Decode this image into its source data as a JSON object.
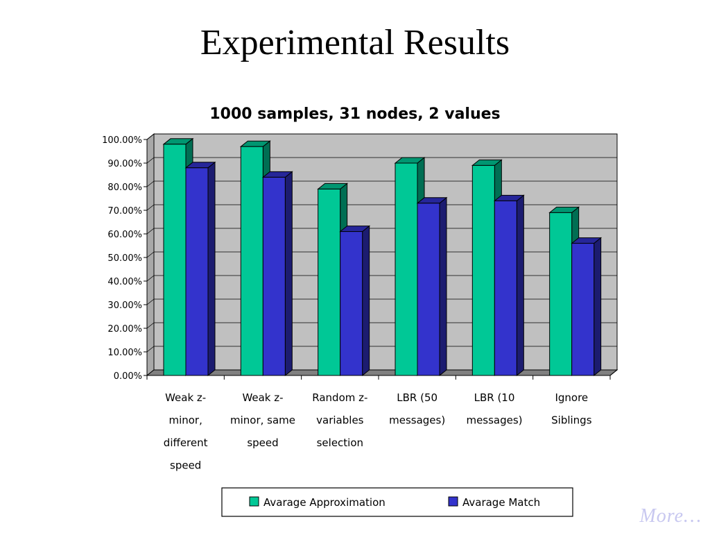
{
  "slide": {
    "title": "Experimental Results",
    "more_link": "More…"
  },
  "chart_data": {
    "type": "bar",
    "title": "1000 samples, 31 nodes, 2 values",
    "xlabel": "",
    "ylabel": "",
    "ylim": [
      0,
      100
    ],
    "yticks": [
      "0.00%",
      "10.00%",
      "20.00%",
      "30.00%",
      "40.00%",
      "50.00%",
      "60.00%",
      "70.00%",
      "80.00%",
      "90.00%",
      "100.00%"
    ],
    "grid": true,
    "legend_position": "bottom",
    "categories": [
      [
        "Weak z-",
        "minor,",
        "different",
        "speed"
      ],
      [
        "Weak z-",
        "minor, same",
        "speed"
      ],
      [
        "Random z-",
        "variables",
        "selection"
      ],
      [
        "LBR (50",
        "messages)"
      ],
      [
        "LBR (10",
        "messages)"
      ],
      [
        "Ignore",
        "Siblings"
      ]
    ],
    "series": [
      {
        "name": "Avarage Approximation",
        "color": "#00c896",
        "values": [
          98,
          97,
          79,
          90,
          89,
          69
        ]
      },
      {
        "name": "Avarage Match",
        "color": "#3333cc",
        "values": [
          88,
          84,
          61,
          73,
          74,
          56
        ]
      }
    ]
  }
}
